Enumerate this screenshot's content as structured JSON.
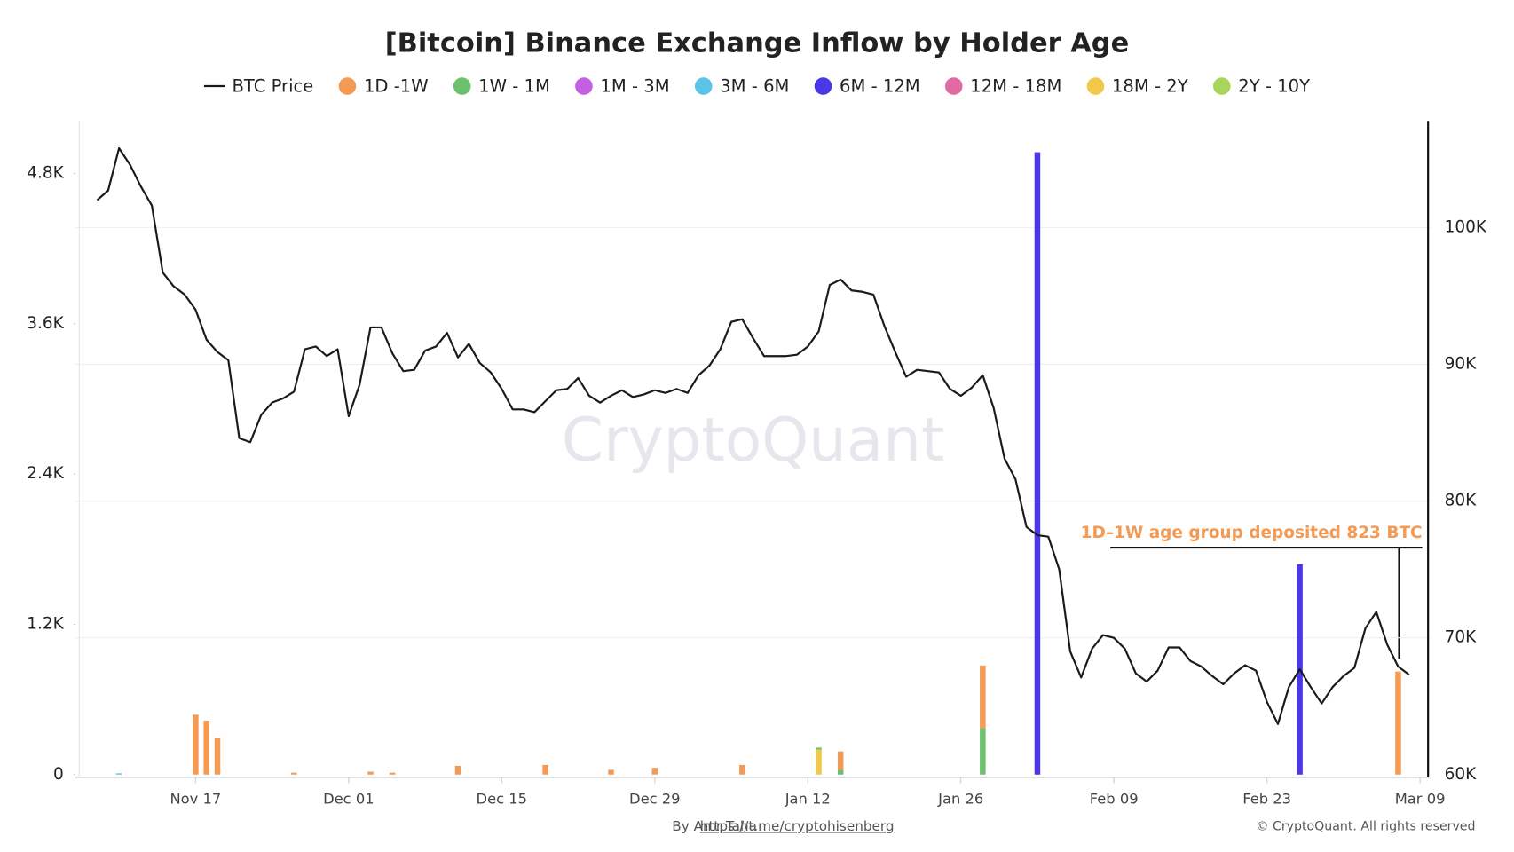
{
  "chart_data": {
    "type": "bar",
    "title": "[Bitcoin] Binance Exchange Inflow by Holder Age",
    "watermark": "CryptoQuant",
    "annotation": "1D–1W age group deposited 823 BTC",
    "footer_author": "By Amr Taha",
    "footer_link": "https://t.me/cryptohisenberg",
    "copyright": "© CryptoQuant. All rights reserved",
    "xlim": [
      "Nov 06",
      "Mar 10"
    ],
    "xticks": [
      "Nov 17",
      "Dec 01",
      "Dec 15",
      "Dec 29",
      "Jan 12",
      "Jan 26",
      "Feb 09",
      "Feb 23",
      "Mar 09"
    ],
    "ylim": [
      0,
      5220
    ],
    "yticks": [
      0,
      {
        "value": 1200,
        "label": "1.2K"
      },
      {
        "value": 2400,
        "label": "2.4K"
      },
      {
        "value": 3600,
        "label": "3.6K"
      },
      {
        "value": 4800,
        "label": "4.8K"
      }
    ],
    "y2lim": [
      60000,
      107800
    ],
    "y2ticks": [
      {
        "value": 60000,
        "label": "60K"
      },
      {
        "value": 70000,
        "label": "70K"
      },
      {
        "value": 80000,
        "label": "80K"
      },
      {
        "value": 90000,
        "label": "90K"
      },
      {
        "value": 100000,
        "label": "100K"
      }
    ],
    "grid": true,
    "series": [
      {
        "name": "BTC Price",
        "type": "line",
        "axis": "y2",
        "color": "#1a1a1a",
        "x": [
          "Nov 08",
          "Nov 09",
          "Nov 10",
          "Nov 11",
          "Nov 12",
          "Nov 13",
          "Nov 14",
          "Nov 15",
          "Nov 16",
          "Nov 17",
          "Nov 18",
          "Nov 19",
          "Nov 20",
          "Nov 21",
          "Nov 22",
          "Nov 23",
          "Nov 24",
          "Nov 25",
          "Nov 26",
          "Nov 27",
          "Nov 28",
          "Nov 29",
          "Nov 30",
          "Dec 01",
          "Dec 02",
          "Dec 03",
          "Dec 04",
          "Dec 05",
          "Dec 06",
          "Dec 07",
          "Dec 08",
          "Dec 09",
          "Dec 10",
          "Dec 11",
          "Dec 12",
          "Dec 13",
          "Dec 14",
          "Dec 15",
          "Dec 16",
          "Dec 17",
          "Dec 18",
          "Dec 19",
          "Dec 20",
          "Dec 21",
          "Dec 22",
          "Dec 23",
          "Dec 24",
          "Dec 25",
          "Dec 26",
          "Dec 27",
          "Dec 28",
          "Dec 29",
          "Dec 30",
          "Dec 31",
          "Jan 01",
          "Jan 02",
          "Jan 03",
          "Jan 04",
          "Jan 05",
          "Jan 06",
          "Jan 07",
          "Jan 08",
          "Jan 09",
          "Jan 10",
          "Jan 11",
          "Jan 12",
          "Jan 13",
          "Jan 14",
          "Jan 15",
          "Jan 16",
          "Jan 17",
          "Jan 18",
          "Jan 19",
          "Jan 20",
          "Jan 21",
          "Jan 22",
          "Jan 23",
          "Jan 24",
          "Jan 25",
          "Jan 26",
          "Jan 27",
          "Jan 28",
          "Jan 29",
          "Jan 30",
          "Jan 31",
          "Feb 01",
          "Feb 02",
          "Feb 03",
          "Feb 04",
          "Feb 05",
          "Feb 06",
          "Feb 07",
          "Feb 08",
          "Feb 09",
          "Feb 10",
          "Feb 11",
          "Feb 12",
          "Feb 13",
          "Feb 14",
          "Feb 15",
          "Feb 16",
          "Feb 17",
          "Feb 18",
          "Feb 19",
          "Feb 20",
          "Feb 21",
          "Feb 22",
          "Feb 23",
          "Feb 24",
          "Feb 25",
          "Feb 26",
          "Feb 27",
          "Feb 28",
          "Mar 01",
          "Mar 02",
          "Mar 03",
          "Mar 04",
          "Mar 05",
          "Mar 06",
          "Mar 07",
          "Mar 08"
        ],
        "values": [
          102000,
          102700,
          105800,
          104600,
          103000,
          101600,
          96700,
          95700,
          95100,
          94000,
          91800,
          90900,
          90300,
          84600,
          84300,
          86300,
          87200,
          87500,
          88000,
          91100,
          91300,
          90600,
          91100,
          86200,
          88500,
          92700,
          92700,
          90800,
          89500,
          89600,
          91000,
          91300,
          92300,
          90500,
          91500,
          90100,
          89400,
          88200,
          86700,
          86700,
          86500,
          87300,
          88100,
          88200,
          89000,
          87700,
          87200,
          87700,
          88100,
          87600,
          87800,
          88100,
          87900,
          88200,
          87900,
          89200,
          89900,
          91100,
          93100,
          93300,
          91900,
          90600,
          90600,
          90600,
          90700,
          91300,
          92400,
          95800,
          96200,
          95400,
          95300,
          95100,
          92800,
          90900,
          89100,
          89600,
          89500,
          89400,
          88200,
          87700,
          88300,
          89200,
          86800,
          83100,
          81600,
          78100,
          77500,
          77400,
          75000,
          69000,
          67100,
          69200,
          70200,
          70000,
          69200,
          67400,
          66800,
          67600,
          69300,
          69300,
          68300,
          67900,
          67200,
          66600,
          67400,
          68000,
          67600,
          65300,
          63700,
          66400,
          67700,
          66400,
          65200,
          66400,
          67200,
          67800,
          70700,
          71900,
          69500,
          67900,
          67300
        ]
      },
      {
        "name": "1D -1W",
        "color": "#f39a55",
        "x": [
          "Nov 17",
          "Nov 18",
          "Nov 19",
          "Nov 26",
          "Dec 03",
          "Dec 05",
          "Dec 11",
          "Dec 19",
          "Dec 25",
          "Dec 29",
          "Jan 06",
          "Jan 15",
          "Jan 28",
          "Mar 07"
        ],
        "values": [
          478,
          431,
          293,
          15,
          23,
          15,
          70,
          77,
          38,
          54,
          77,
          147,
          501,
          823
        ]
      },
      {
        "name": "1W - 1M",
        "color": "#6cc26c",
        "x": [
          "Jan 13",
          "Jan 15",
          "Jan 28"
        ],
        "values": [
          15,
          38,
          370
        ]
      },
      {
        "name": "1M - 3M",
        "color": "#c35fe0",
        "x": [],
        "values": []
      },
      {
        "name": "3M - 6M",
        "color": "#5cc3e8",
        "x": [
          "Nov 10"
        ],
        "values": [
          10
        ]
      },
      {
        "name": "6M - 12M",
        "color": "#4b37e6",
        "x": [
          "Feb 02",
          "Feb 26"
        ],
        "values": [
          4969,
          1680
        ]
      },
      {
        "name": "12M - 18M",
        "color": "#e26aa2",
        "x": [],
        "values": []
      },
      {
        "name": "18M - 2Y",
        "color": "#f0c94b",
        "x": [
          "Jan 13"
        ],
        "values": [
          200
        ]
      },
      {
        "name": "2Y - 10Y",
        "color": "#a8d65c",
        "x": [],
        "values": []
      }
    ]
  }
}
